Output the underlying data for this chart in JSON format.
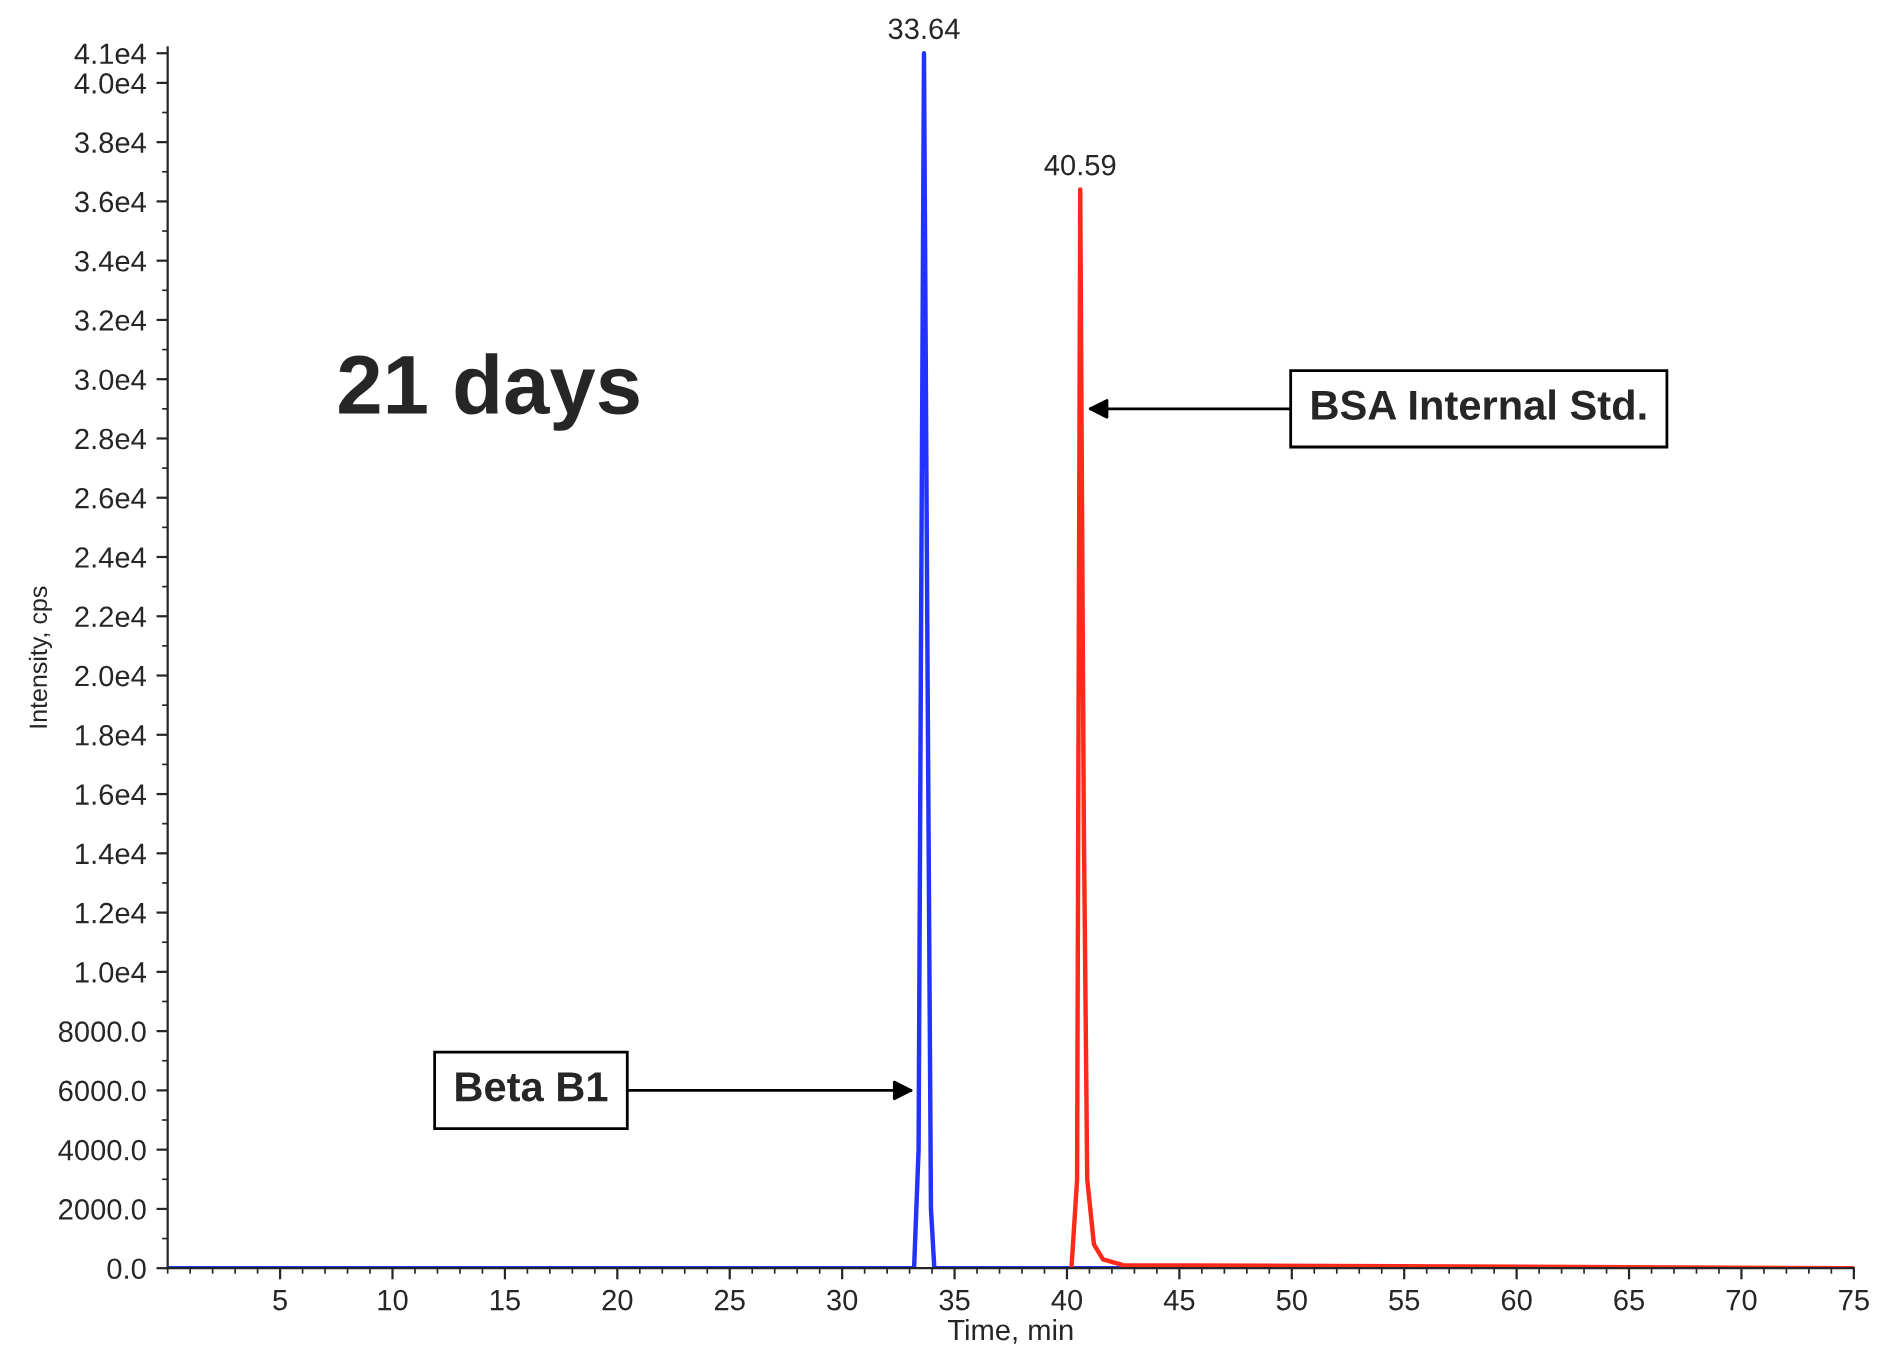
{
  "chart_data": {
    "type": "line",
    "xlabel": "Time, min",
    "ylabel": "Intensity, cps",
    "xlim": [
      0,
      75
    ],
    "xticks": [
      5,
      10,
      15,
      20,
      25,
      30,
      35,
      40,
      45,
      50,
      55,
      60,
      65,
      70,
      75
    ],
    "ylim": [
      0,
      41200
    ],
    "yticks": [
      {
        "value": 0,
        "label": "0.0"
      },
      {
        "value": 2000,
        "label": "2000.0"
      },
      {
        "value": 4000,
        "label": "4000.0"
      },
      {
        "value": 6000,
        "label": "6000.0"
      },
      {
        "value": 8000,
        "label": "8000.0"
      },
      {
        "value": 10000,
        "label": "1.0e4"
      },
      {
        "value": 12000,
        "label": "1.2e4"
      },
      {
        "value": 14000,
        "label": "1.4e4"
      },
      {
        "value": 16000,
        "label": "1.6e4"
      },
      {
        "value": 18000,
        "label": "1.8e4"
      },
      {
        "value": 20000,
        "label": "2.0e4"
      },
      {
        "value": 22000,
        "label": "2.2e4"
      },
      {
        "value": 24000,
        "label": "2.4e4"
      },
      {
        "value": 26000,
        "label": "2.6e4"
      },
      {
        "value": 28000,
        "label": "2.8e4"
      },
      {
        "value": 30000,
        "label": "3.0e4"
      },
      {
        "value": 32000,
        "label": "3.2e4"
      },
      {
        "value": 34000,
        "label": "3.4e4"
      },
      {
        "value": 36000,
        "label": "3.6e4"
      },
      {
        "value": 38000,
        "label": "3.8e4"
      },
      {
        "value": 40000,
        "label": "4.0e4"
      },
      {
        "value": 41000,
        "label": "4.1e4"
      }
    ],
    "grid": false,
    "legend": false,
    "marker": "none",
    "line_style": "solid",
    "series": [
      {
        "color": "#2233ff",
        "x": [
          0,
          33.2,
          33.4,
          33.5,
          33.64,
          33.8,
          33.95,
          34.1,
          75
        ],
        "values": [
          0,
          0,
          4000,
          20000,
          41000,
          20000,
          2000,
          0,
          0
        ]
      },
      {
        "color": "#ff2a1a",
        "x": [
          40.2,
          40.45,
          40.59,
          40.75,
          40.9,
          41.2,
          41.6,
          42.5,
          75
        ],
        "values": [
          0,
          3000,
          36400,
          15000,
          3000,
          800,
          300,
          100,
          0
        ]
      }
    ],
    "annotations": [
      {
        "text": "33.64",
        "x": 33.64,
        "y": 41000
      },
      {
        "text": "40.59",
        "x": 40.59,
        "y": 36400
      },
      "21 days",
      {
        "text": "BSA Internal Std.",
        "x": 40.9,
        "y": 29000
      },
      {
        "text": "Beta B1",
        "x": 33.2,
        "y": 6000
      }
    ]
  }
}
